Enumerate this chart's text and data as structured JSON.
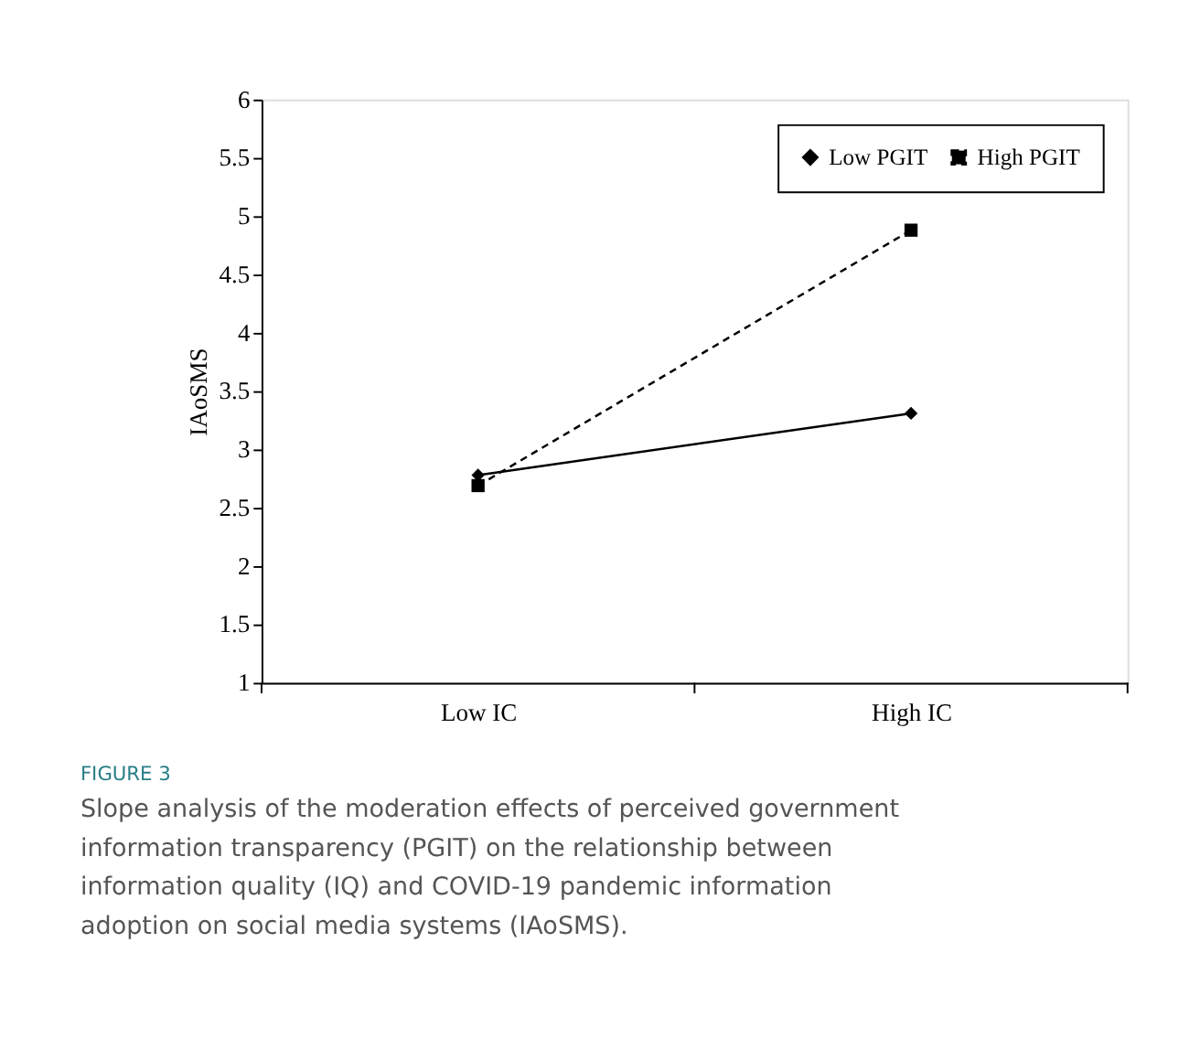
{
  "chart_data": {
    "type": "line",
    "categories": [
      "Low IC",
      "High IC"
    ],
    "ylabel": "IAoSMS",
    "ylim": [
      1,
      6
    ],
    "yticks": [
      1,
      1.5,
      2,
      2.5,
      3,
      3.5,
      4,
      4.5,
      5,
      5.5,
      6
    ],
    "series": [
      {
        "name": "Low PGIT",
        "color": "#000000",
        "values": [
          2.78,
          3.31
        ],
        "marker": "diamond",
        "line_style": "solid"
      },
      {
        "name": "High PGIT",
        "color": "#000000",
        "values": [
          2.69,
          4.88
        ],
        "marker": "square",
        "line_style": "dashed"
      }
    ],
    "legend": "top right",
    "grid": false,
    "annotations": [
      "FIGURE 3",
      "Slope analysis of the moderation effects of perceived government information transparency (PGIT) on the relationship between information quality (IQ) and COVID-19 pandemic information adoption on social media systems (IAoSMS)."
    ]
  }
}
